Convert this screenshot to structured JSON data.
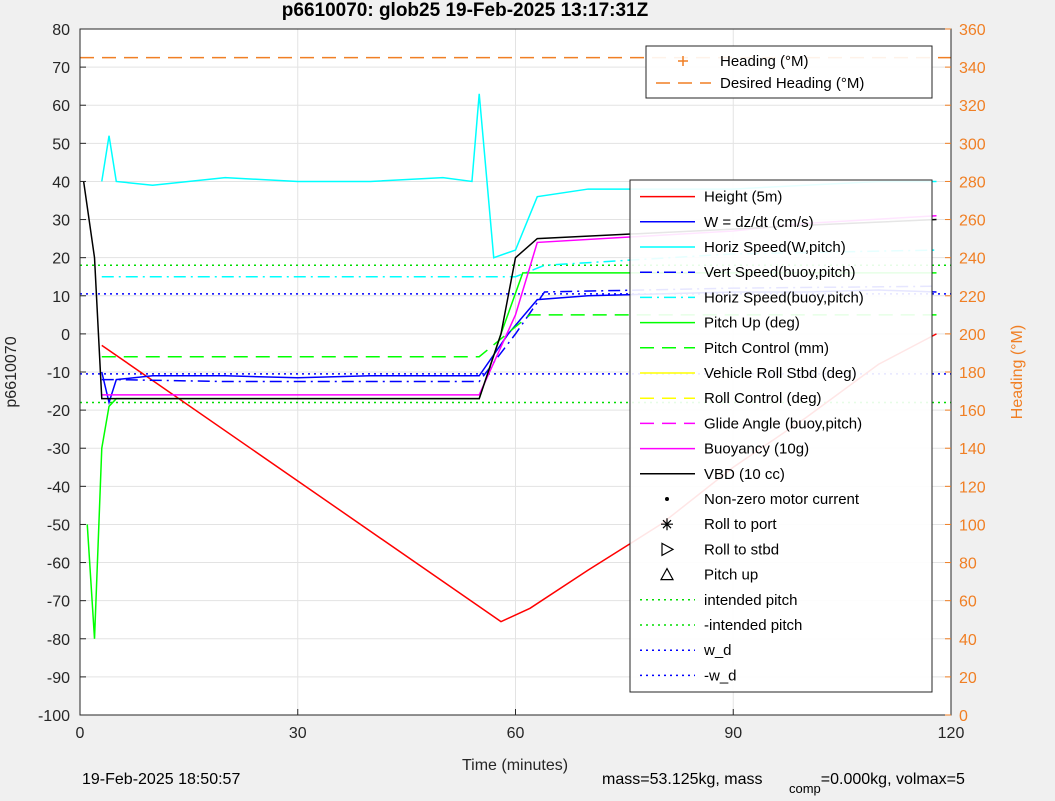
{
  "chart_data": {
    "type": "line",
    "title": "p6610070: glob25 19-Feb-2025 13:17:31Z",
    "xlabel": "Time (minutes)",
    "ylabel": "p6610070",
    "y2label": "Heading (°M)",
    "xlim": [
      0,
      120
    ],
    "ylim": [
      -100,
      80
    ],
    "y2lim": [
      0,
      360
    ],
    "xticks": [
      0,
      30,
      60,
      90,
      120
    ],
    "yticks": [
      80,
      70,
      60,
      50,
      40,
      30,
      20,
      10,
      0,
      -10,
      -20,
      -30,
      -40,
      -50,
      -60,
      -70,
      -80,
      -90,
      -100
    ],
    "y2ticks": [
      360,
      340,
      320,
      300,
      280,
      260,
      240,
      220,
      200,
      180,
      160,
      140,
      120,
      100,
      80,
      60,
      40,
      20,
      0
    ],
    "grid": true,
    "legend_placement": "right",
    "legend_top": [
      {
        "label": "Heading (°M)",
        "color": "#f07f24",
        "style": "plus"
      },
      {
        "label": "Desired Heading (°M)",
        "color": "#f07f24",
        "style": "dash"
      }
    ],
    "legend_main": [
      {
        "label": "Height (5m)",
        "color": "#ff0000",
        "style": "solid"
      },
      {
        "label": "W = dz/dt (cm/s)",
        "color": "#0000ff",
        "style": "solid"
      },
      {
        "label": "Horiz Speed(W,pitch)",
        "color": "#00ffff",
        "style": "solid"
      },
      {
        "label": "Vert Speed(buoy,pitch)",
        "color": "#0000ff",
        "style": "dashdot"
      },
      {
        "label": "Horiz Speed(buoy,pitch)",
        "color": "#00ffff",
        "style": "dashdot"
      },
      {
        "label": "Pitch Up (deg)",
        "color": "#00ff00",
        "style": "solid"
      },
      {
        "label": "Pitch Control (mm)",
        "color": "#00ff00",
        "style": "dash"
      },
      {
        "label": "Vehicle Roll Stbd (deg)",
        "color": "#ffff00",
        "style": "solid"
      },
      {
        "label": "Roll Control (deg)",
        "color": "#ffff00",
        "style": "dash"
      },
      {
        "label": "Glide Angle (buoy,pitch)",
        "color": "#ff00ff",
        "style": "dash"
      },
      {
        "label": "Buoyancy (10g)",
        "color": "#ff00ff",
        "style": "solid"
      },
      {
        "label": "VBD (10 cc)",
        "color": "#000000",
        "style": "solid"
      },
      {
        "label": "Non-zero motor current",
        "color": "#000000",
        "style": "dot"
      },
      {
        "label": "Roll to port",
        "color": "#000000",
        "style": "star"
      },
      {
        "label": "Roll to stbd",
        "color": "#000000",
        "style": "tri-right"
      },
      {
        "label": "Pitch up",
        "color": "#000000",
        "style": "tri-up"
      },
      {
        "label": "intended pitch",
        "color": "#00dd00",
        "style": "dotted"
      },
      {
        "label": "-intended pitch",
        "color": "#00dd00",
        "style": "dotted"
      },
      {
        "label": "w_d",
        "color": "#0000ff",
        "style": "dotted"
      },
      {
        "label": "-w_d",
        "color": "#0000ff",
        "style": "dotted"
      }
    ],
    "series": [
      {
        "name": "Height (5m)",
        "x": [
          3,
          58,
          62,
          70,
          80,
          90,
          100,
          110,
          118
        ],
        "y": [
          -3,
          -75.5,
          -72,
          -62,
          -50,
          -35,
          -22,
          -8,
          0
        ]
      },
      {
        "name": "W = dz/dt (cm/s)",
        "x": [
          3,
          4,
          5,
          10,
          20,
          30,
          40,
          50,
          55,
          59,
          63,
          70,
          80,
          90,
          100,
          110,
          118
        ],
        "y": [
          -10,
          -18,
          -12,
          -11,
          -11,
          -11.5,
          -11,
          -11,
          -11,
          0,
          9,
          10,
          10.5,
          11,
          11,
          11.5,
          11
        ]
      },
      {
        "name": "Horiz Speed(W,pitch)",
        "x": [
          3,
          4,
          5,
          10,
          20,
          30,
          40,
          50,
          54,
          55,
          57,
          60,
          63,
          70,
          80,
          90,
          100,
          110,
          118
        ],
        "y": [
          40,
          52,
          40,
          39,
          41,
          40,
          40,
          41,
          40,
          63,
          20,
          22,
          36,
          38,
          38,
          38,
          39,
          40,
          40
        ]
      },
      {
        "name": "Vert Speed(buoy,pitch)",
        "x": [
          3,
          5,
          20,
          40,
          55,
          60,
          64,
          90,
          118
        ],
        "y": [
          -12,
          -12,
          -12.5,
          -12.5,
          -12.5,
          0,
          11,
          12,
          12.5
        ]
      },
      {
        "name": "Horiz Speed(buoy,pitch)",
        "x": [
          3,
          5,
          20,
          40,
          55,
          60,
          64,
          90,
          118
        ],
        "y": [
          15,
          15,
          15,
          15,
          15,
          15,
          18,
          21,
          22
        ]
      },
      {
        "name": "Pitch Up (deg)",
        "x": [
          1,
          2,
          3,
          4,
          5,
          10,
          30,
          55,
          58,
          61,
          70,
          90,
          118
        ],
        "y": [
          -50,
          -80,
          -30,
          -19,
          -17,
          -17,
          -17,
          -17,
          0,
          16,
          16,
          16,
          16
        ]
      },
      {
        "name": "Pitch Control (mm)",
        "x": [
          3,
          55,
          62,
          118
        ],
        "y": [
          -6,
          -6,
          5,
          5
        ]
      },
      {
        "name": "Buoyancy (10g)",
        "x": [
          3,
          55,
          60,
          63,
          90,
          100,
          118
        ],
        "y": [
          -16,
          -16,
          5,
          24,
          27,
          29,
          31
        ]
      },
      {
        "name": "VBD (10 cc)",
        "x": [
          0.5,
          2,
          3,
          55,
          58,
          60,
          63,
          90,
          100,
          118
        ],
        "y": [
          40,
          20,
          -17,
          -17,
          0,
          20,
          25,
          27.5,
          28.5,
          30
        ]
      },
      {
        "name": "Desired Heading (°M)",
        "x": [
          0,
          120
        ],
        "y2": [
          345,
          345
        ]
      }
    ],
    "constant_lines": [
      {
        "name": "intended pitch",
        "y": 18
      },
      {
        "name": "-intended pitch",
        "y": -18
      },
      {
        "name": "w_d",
        "y": 10.5
      },
      {
        "name": "-w_d",
        "y": -10.5
      }
    ]
  },
  "footer": {
    "timestamp": "19-Feb-2025 18:50:57",
    "mass_text": "mass=53.125kg, mass",
    "comp_sub": "comp",
    "rest_text": "=0.000kg, volmax=5"
  }
}
